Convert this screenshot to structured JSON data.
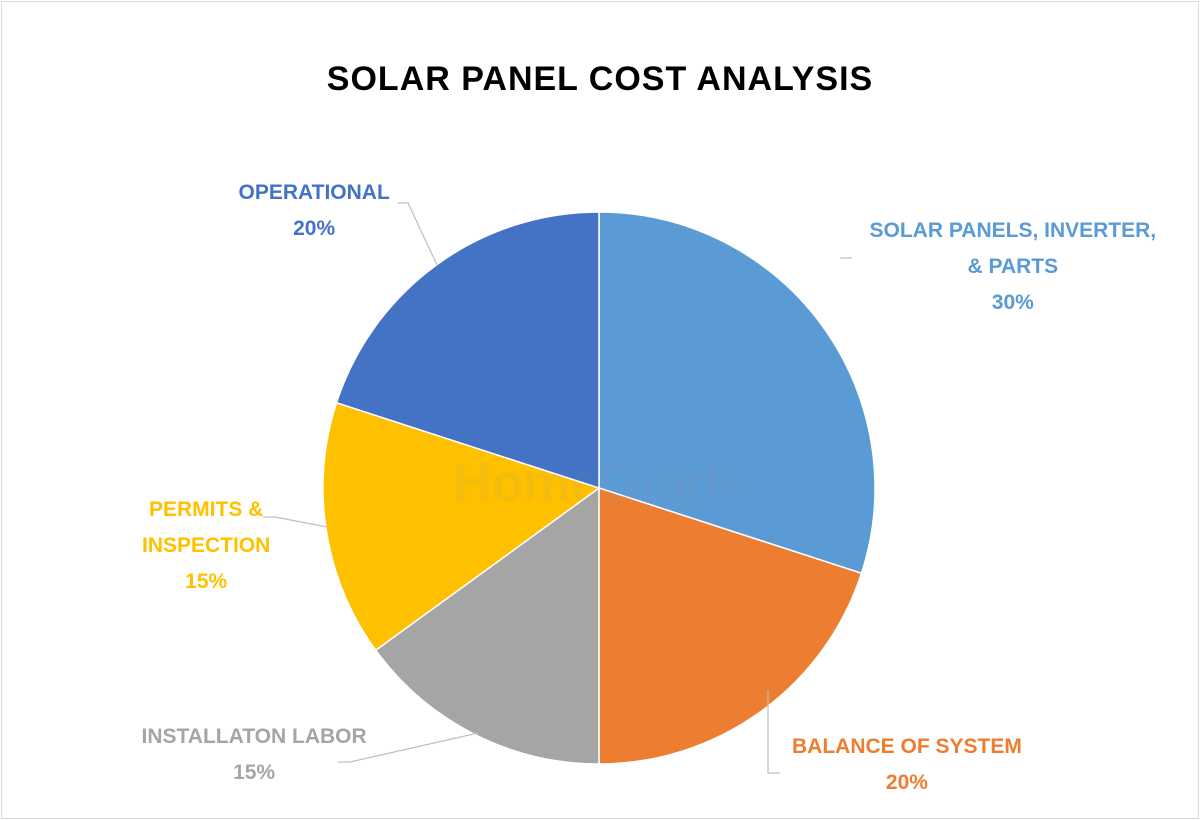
{
  "chart_data": {
    "type": "pie",
    "title": "SOLAR PANEL COST ANALYSIS",
    "watermark": "HomeGuide",
    "slices": [
      {
        "label_lines": [
          "SOLAR PANELS, INVERTER,",
          "& PARTS"
        ],
        "value": 30,
        "value_label": "30%",
        "color": "#5b9bd5"
      },
      {
        "label_lines": [
          "BALANCE OF SYSTEM"
        ],
        "value": 20,
        "value_label": "20%",
        "color": "#ed7d31"
      },
      {
        "label_lines": [
          "INSTALLATON LABOR"
        ],
        "value": 15,
        "value_label": "15%",
        "color": "#a5a5a5"
      },
      {
        "label_lines": [
          "PERMITS &",
          "INSPECTION"
        ],
        "value": 15,
        "value_label": "15%",
        "color": "#ffc000"
      },
      {
        "label_lines": [
          "OPERATIONAL"
        ],
        "value": 20,
        "value_label": "20%",
        "color": "#4472c4"
      }
    ],
    "leader_line_color": "#bfbfbf"
  }
}
